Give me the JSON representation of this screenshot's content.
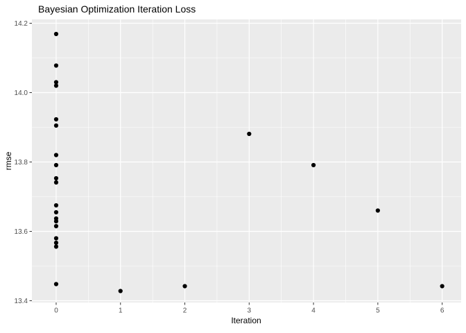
{
  "chart_data": {
    "type": "scatter",
    "title": "Bayesian Optimization Iteration Loss",
    "xlabel": "Iteration",
    "ylabel": "rmse",
    "xlim": [
      -0.377,
      6.295
    ],
    "ylim": [
      13.395,
      14.211
    ],
    "grid": true,
    "legend": "none",
    "x_ticks": [
      {
        "value": 0,
        "label": "0"
      },
      {
        "value": 1,
        "label": "1"
      },
      {
        "value": 2,
        "label": "2"
      },
      {
        "value": 3,
        "label": "3"
      },
      {
        "value": 4,
        "label": "4"
      },
      {
        "value": 5,
        "label": "5"
      },
      {
        "value": 6,
        "label": "6"
      }
    ],
    "y_ticks": [
      {
        "value": 13.4,
        "label": "13.4"
      },
      {
        "value": 13.6,
        "label": "13.6"
      },
      {
        "value": 13.8,
        "label": "13.8"
      },
      {
        "value": 14.0,
        "label": "14.0"
      },
      {
        "value": 14.2,
        "label": "14.2"
      }
    ],
    "x_minor_ticks": [
      0.5,
      1.5,
      2.5,
      3.5,
      4.5,
      5.5
    ],
    "y_minor_ticks": [
      13.5,
      13.7,
      13.9,
      14.1
    ],
    "points": [
      {
        "x": 0,
        "y": 14.169
      },
      {
        "x": 0,
        "y": 14.078
      },
      {
        "x": 0,
        "y": 14.03
      },
      {
        "x": 0,
        "y": 14.02
      },
      {
        "x": 0,
        "y": 13.923
      },
      {
        "x": 0,
        "y": 13.905
      },
      {
        "x": 0,
        "y": 13.82
      },
      {
        "x": 0,
        "y": 13.791
      },
      {
        "x": 0,
        "y": 13.753
      },
      {
        "x": 0,
        "y": 13.741
      },
      {
        "x": 0,
        "y": 13.675
      },
      {
        "x": 0,
        "y": 13.655
      },
      {
        "x": 0,
        "y": 13.637
      },
      {
        "x": 0,
        "y": 13.629
      },
      {
        "x": 0,
        "y": 13.615
      },
      {
        "x": 0,
        "y": 13.58
      },
      {
        "x": 0,
        "y": 13.567
      },
      {
        "x": 0,
        "y": 13.556
      },
      {
        "x": 0,
        "y": 13.448
      },
      {
        "x": 1,
        "y": 13.428
      },
      {
        "x": 2,
        "y": 13.442
      },
      {
        "x": 3,
        "y": 13.881
      },
      {
        "x": 4,
        "y": 13.791
      },
      {
        "x": 5,
        "y": 13.66
      },
      {
        "x": 6,
        "y": 13.442
      }
    ],
    "colors": {
      "panel_bg": "#EBEBEB",
      "grid": "#FFFFFF",
      "point": "#000000",
      "tick_text": "#4D4D4D",
      "tick_mark": "#333333",
      "title_text": "#000000"
    }
  }
}
